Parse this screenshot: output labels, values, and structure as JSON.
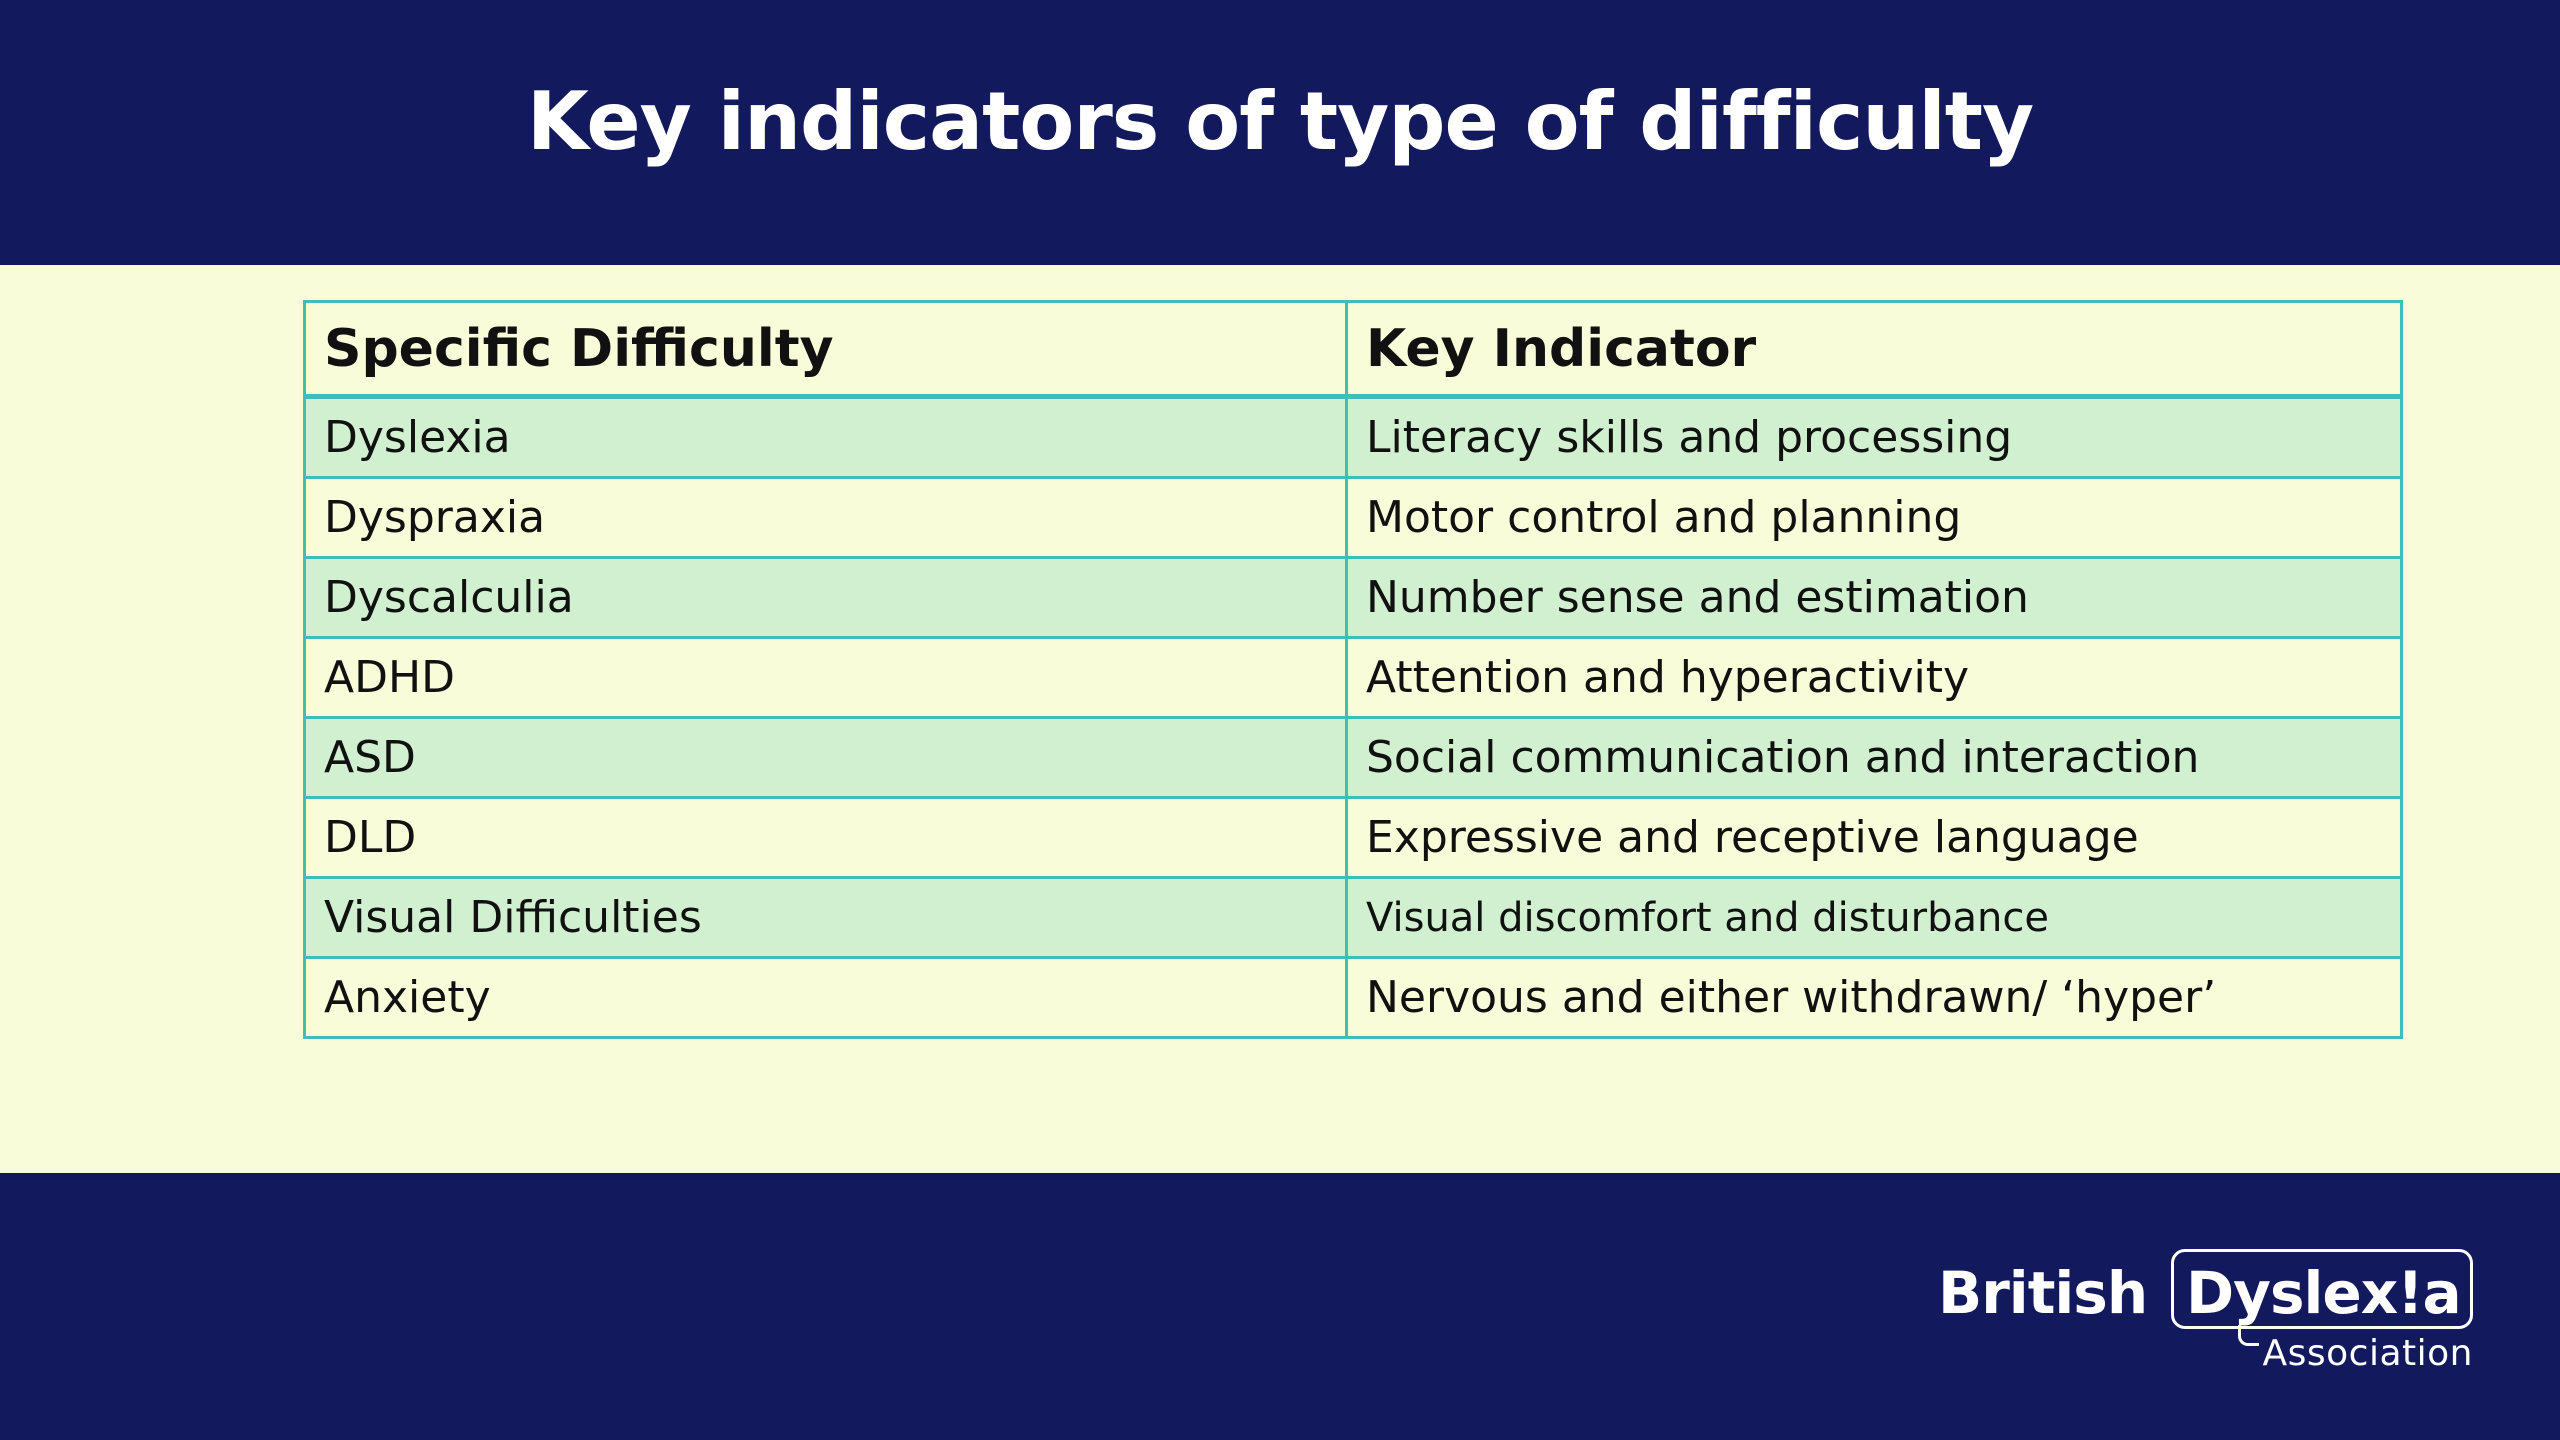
{
  "slide": {
    "title": "Key indicators of type of difficulty"
  },
  "table": {
    "headers": [
      "Specific Difficulty",
      "Key Indicator"
    ],
    "rows": [
      {
        "difficulty": "Dyslexia",
        "indicator": "Literacy skills and processing"
      },
      {
        "difficulty": "Dyspraxia",
        "indicator": "Motor control and planning"
      },
      {
        "difficulty": "Dyscalculia",
        "indicator": "Number sense and estimation"
      },
      {
        "difficulty": "ADHD",
        "indicator": "Attention and hyperactivity"
      },
      {
        "difficulty": "ASD",
        "indicator": "Social communication and interaction"
      },
      {
        "difficulty": "DLD",
        "indicator": "Expressive and receptive language"
      },
      {
        "difficulty": "Visual Difficulties",
        "indicator": "Visual discomfort and disturbance"
      },
      {
        "difficulty": "Anxiety",
        "indicator": "Nervous and either withdrawn/ ‘hyper’"
      }
    ]
  },
  "logo": {
    "word1": "British",
    "word2": "Dyslex!a",
    "subtitle": "Association"
  },
  "colors": {
    "band": "#12195c",
    "background": "#f8fcd8",
    "row_alt": "#d1f0d0",
    "border": "#3dbfb6",
    "text": "#111111"
  }
}
